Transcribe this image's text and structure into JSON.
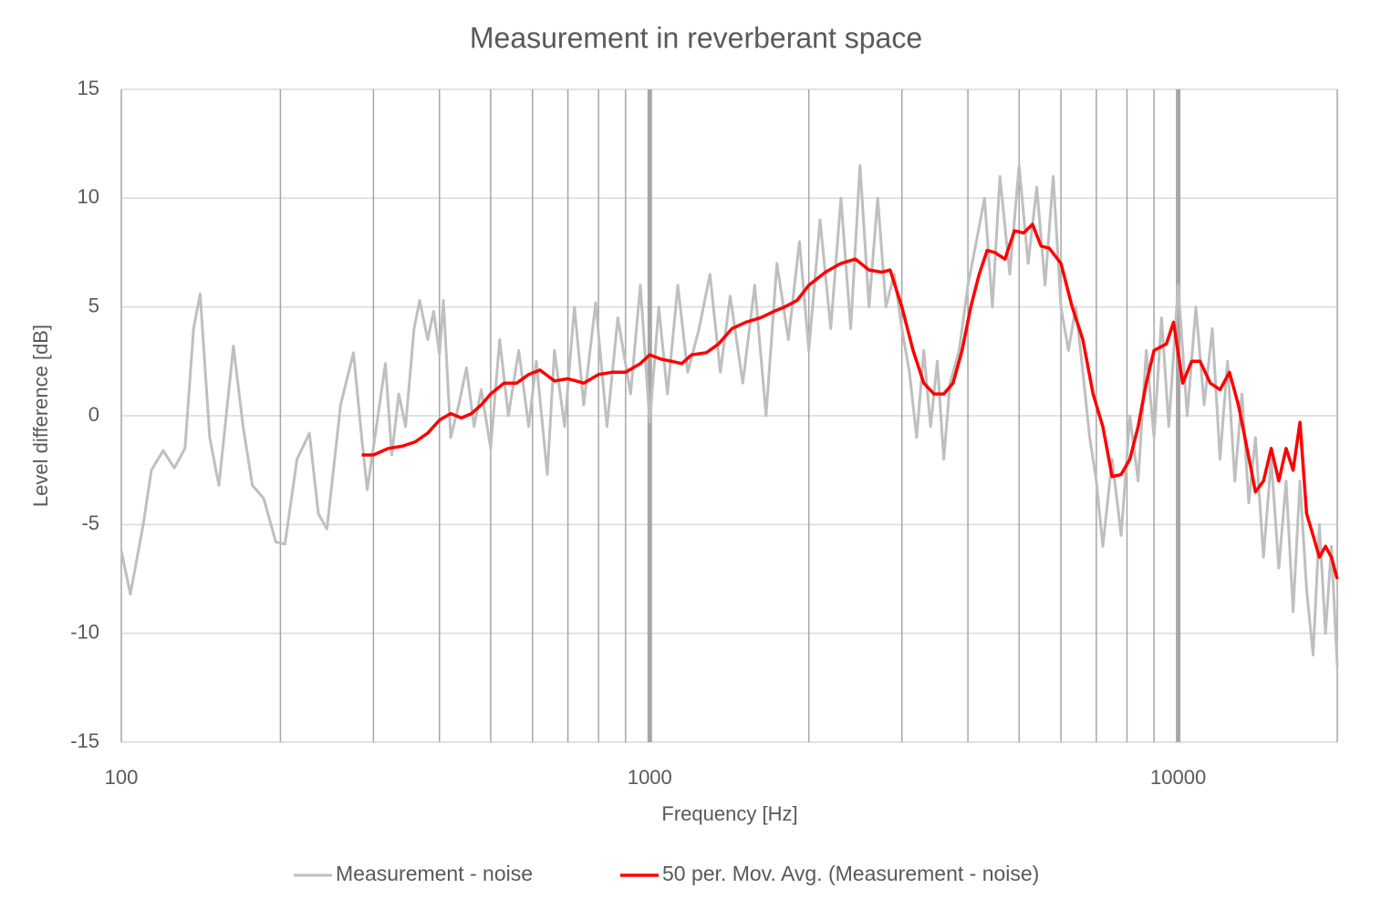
{
  "chart_data": {
    "type": "line",
    "title": "Measurement in  reverberant space",
    "xlabel": "Frequency [Hz]",
    "ylabel": "Level difference [dB]",
    "xscale": "log",
    "xlim": [
      100,
      20000
    ],
    "xticks": [
      100,
      1000,
      10000
    ],
    "xgrid": [
      200,
      300,
      400,
      500,
      600,
      700,
      800,
      900,
      1000,
      2000,
      3000,
      4000,
      5000,
      6000,
      7000,
      8000,
      9000,
      10000,
      20000
    ],
    "ylim": [
      -15,
      15
    ],
    "yticks": [
      -15,
      -10,
      -5,
      0,
      5,
      10,
      15
    ],
    "grid": true,
    "legend": "bottom",
    "series": [
      {
        "name": "Measurement - noise",
        "color": "#bfbfbf",
        "x": [
          100,
          104,
          110,
          114,
          120,
          126,
          132,
          137,
          141,
          147,
          153,
          163,
          170,
          177,
          186,
          196,
          204,
          215,
          227,
          236,
          245,
          260,
          275,
          285,
          292,
          304,
          316,
          325,
          335,
          345,
          358,
          367,
          380,
          390,
          400,
          407,
          420,
          435,
          450,
          465,
          480,
          500,
          520,
          540,
          565,
          590,
          610,
          640,
          660,
          690,
          720,
          750,
          790,
          830,
          870,
          920,
          960,
          1000,
          1040,
          1080,
          1130,
          1180,
          1240,
          1300,
          1360,
          1420,
          1500,
          1580,
          1660,
          1740,
          1830,
          1920,
          2000,
          2100,
          2200,
          2300,
          2400,
          2500,
          2600,
          2700,
          2800,
          2900,
          3000,
          3100,
          3200,
          3300,
          3400,
          3500,
          3600,
          3700,
          3850,
          4000,
          4150,
          4300,
          4450,
          4600,
          4800,
          5000,
          5200,
          5400,
          5600,
          5800,
          6000,
          6200,
          6400,
          6600,
          6800,
          7000,
          7200,
          7500,
          7800,
          8100,
          8400,
          8700,
          9000,
          9300,
          9600,
          10000,
          10400,
          10800,
          11200,
          11600,
          12000,
          12400,
          12800,
          13200,
          13600,
          14000,
          14500,
          15000,
          15500,
          16000,
          16500,
          17000,
          17500,
          18000,
          18500,
          19000,
          19500,
          20000
        ],
        "values": [
          -6.2,
          -8.2,
          -5,
          -2.5,
          -1.6,
          -2.4,
          -1.5,
          4,
          5.6,
          -1,
          -3.2,
          3.2,
          -0.5,
          -3.2,
          -3.8,
          -5.8,
          -5.9,
          -2,
          -0.8,
          -4.5,
          -5.2,
          0.5,
          2.9,
          -1,
          -3.4,
          -0.5,
          2.4,
          -1.8,
          1,
          -0.5,
          4,
          5.3,
          3.5,
          4.8,
          2.8,
          5.3,
          -1,
          0.5,
          2.2,
          -0.5,
          1.2,
          -1.5,
          3.5,
          0,
          3,
          -0.5,
          2.5,
          -2.7,
          3,
          -0.5,
          5,
          0.5,
          5.2,
          -0.5,
          4.5,
          1,
          6,
          -0.3,
          5,
          1,
          6,
          2,
          4,
          6.5,
          2,
          5.5,
          1.5,
          6,
          0,
          7,
          3.5,
          8,
          3,
          9,
          4,
          10,
          4,
          11.5,
          5,
          10,
          5,
          6.5,
          4,
          2,
          -1,
          3,
          -0.5,
          2.5,
          -2,
          1.5,
          3,
          6,
          8,
          10,
          5,
          11,
          6.5,
          11.5,
          7,
          10.5,
          6,
          11,
          5,
          3,
          5,
          2,
          -1,
          -3,
          -6,
          -2,
          -5.5,
          0,
          -3,
          3,
          -1,
          4.5,
          -0.5,
          6,
          0,
          5,
          0.5,
          4,
          -2,
          2.5,
          -3,
          1,
          -4,
          -1,
          -6.5,
          -2,
          -7,
          -3,
          -9,
          -3,
          -8,
          -11,
          -5,
          -10,
          -6,
          -11.5
        ]
      },
      {
        "name": "50 per. Mov. Avg. (Measurement - noise)",
        "color": "#ff0000",
        "x": [
          285,
          300,
          320,
          340,
          360,
          380,
          400,
          420,
          440,
          460,
          480,
          500,
          530,
          560,
          590,
          620,
          660,
          700,
          750,
          800,
          850,
          900,
          960,
          1000,
          1050,
          1100,
          1150,
          1200,
          1280,
          1350,
          1430,
          1520,
          1620,
          1720,
          1800,
          1900,
          2000,
          2150,
          2300,
          2450,
          2600,
          2750,
          2850,
          3000,
          3150,
          3300,
          3450,
          3600,
          3750,
          3900,
          4050,
          4200,
          4350,
          4500,
          4700,
          4900,
          5100,
          5300,
          5500,
          5700,
          6000,
          6300,
          6600,
          6900,
          7200,
          7500,
          7800,
          8100,
          8400,
          8700,
          9000,
          9500,
          9800,
          10200,
          10600,
          11000,
          11500,
          12000,
          12500,
          13000,
          13500,
          14000,
          14500,
          15000,
          15500,
          16000,
          16500,
          17000,
          17500,
          18000,
          18500,
          19000,
          19500,
          20000
        ],
        "values": [
          -1.8,
          -1.8,
          -1.5,
          -1.4,
          -1.2,
          -0.8,
          -0.2,
          0.1,
          -0.1,
          0.1,
          0.5,
          1.0,
          1.5,
          1.5,
          1.9,
          2.1,
          1.6,
          1.7,
          1.5,
          1.9,
          2.0,
          2.0,
          2.4,
          2.8,
          2.6,
          2.5,
          2.4,
          2.8,
          2.9,
          3.3,
          4.0,
          4.3,
          4.5,
          4.8,
          5.0,
          5.3,
          6.0,
          6.6,
          7.0,
          7.2,
          6.7,
          6.6,
          6.7,
          5.0,
          3.0,
          1.5,
          1.0,
          1.0,
          1.5,
          3.0,
          5.0,
          6.5,
          7.6,
          7.5,
          7.2,
          8.5,
          8.4,
          8.8,
          7.8,
          7.7,
          7.0,
          5.0,
          3.5,
          1.0,
          -0.5,
          -2.8,
          -2.7,
          -2.0,
          -0.5,
          1.5,
          3.0,
          3.3,
          4.3,
          1.5,
          2.5,
          2.5,
          1.5,
          1.2,
          2.0,
          0.5,
          -1.5,
          -3.5,
          -3.0,
          -1.5,
          -3.0,
          -1.5,
          -2.5,
          -0.3,
          -4.5,
          -5.5,
          -6.5,
          -6.0,
          -6.5,
          -7.5
        ]
      }
    ]
  }
}
